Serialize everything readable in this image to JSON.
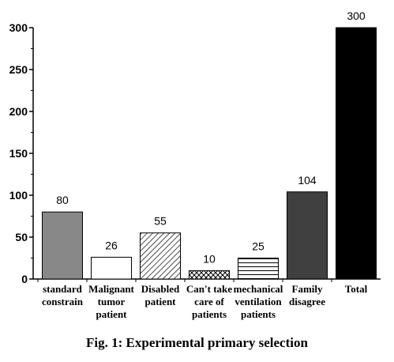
{
  "caption": "Fig. 1: Experimental primary selection",
  "chart_data": {
    "type": "bar",
    "title": "",
    "xlabel": "",
    "ylabel": "",
    "ylim": [
      0,
      300
    ],
    "yticks": [
      "0",
      "50",
      "100",
      "150",
      "200",
      "250",
      "300"
    ],
    "categories": [
      [
        "standard",
        "constrain"
      ],
      [
        "Malignant",
        "tumor",
        "patient"
      ],
      [
        "Disabled",
        "patient"
      ],
      [
        "Can't take",
        "care of",
        "patients"
      ],
      [
        "mechanical",
        "ventilation",
        "patients"
      ],
      [
        "Family",
        "disagree"
      ],
      [
        "Total"
      ]
    ],
    "values": [
      80,
      26,
      55,
      10,
      25,
      104,
      300
    ],
    "data_labels": [
      "80",
      "26",
      "55",
      "10",
      "25",
      "104",
      "300"
    ],
    "fills": [
      "gray",
      "white",
      "diagonal-hatch",
      "cross-hatch",
      "horizontal-lines",
      "dark-gray",
      "black"
    ],
    "colors": {
      "gray": "#888888",
      "white": "#ffffff",
      "dark_gray": "#404040",
      "black": "#000000"
    }
  }
}
